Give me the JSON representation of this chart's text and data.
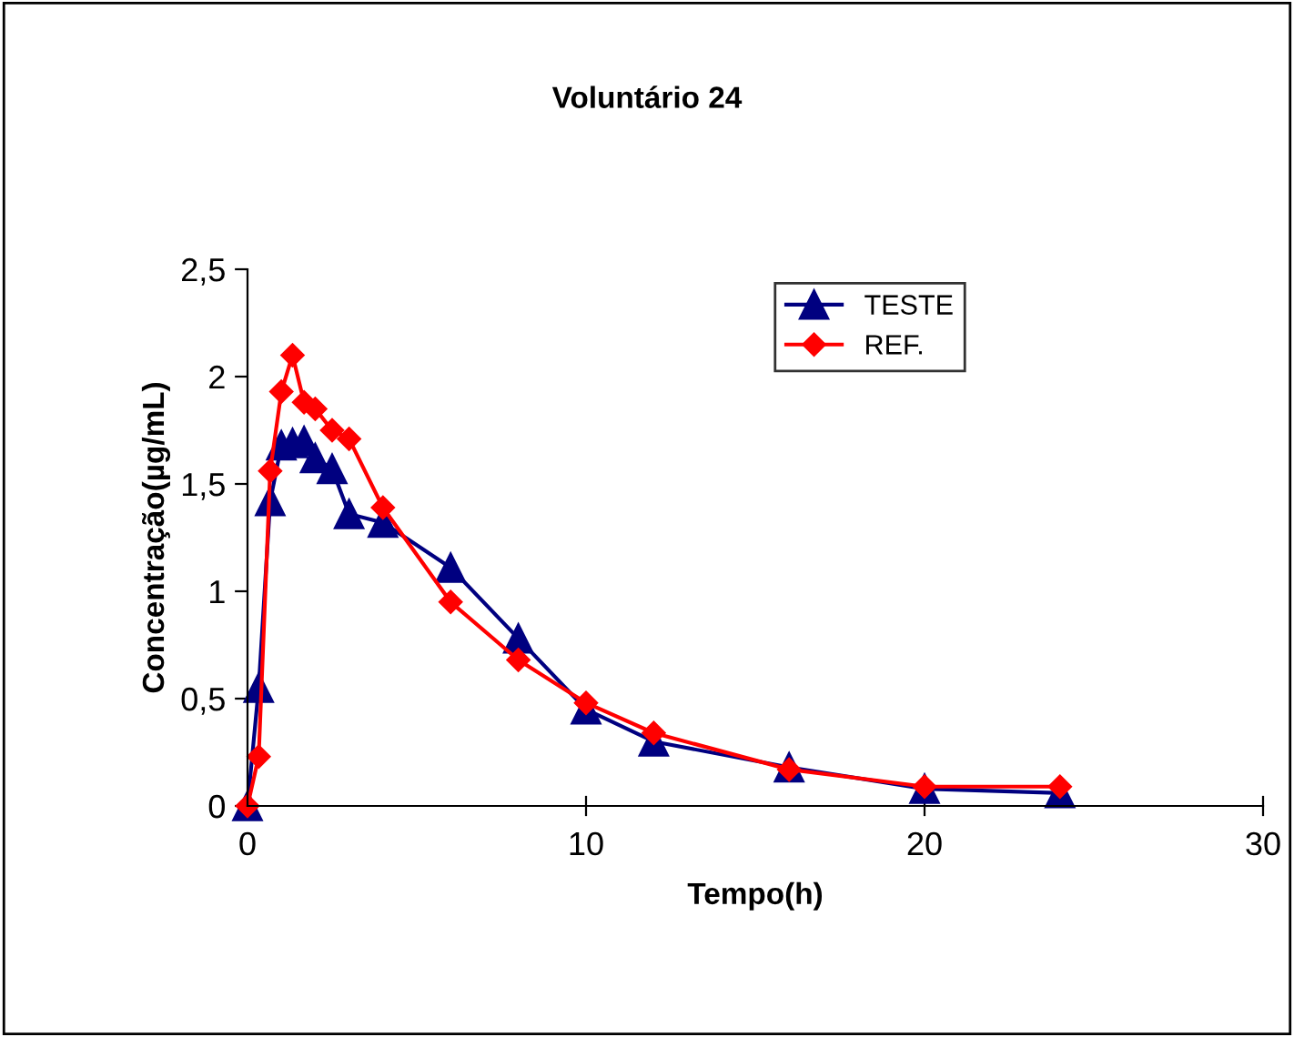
{
  "chart_data": {
    "type": "line",
    "title": "Voluntário 24",
    "xlabel": "Tempo(h)",
    "ylabel": "Concentração(µg/mL)",
    "xlim": [
      0,
      30
    ],
    "xticks": [
      0,
      10,
      20,
      30
    ],
    "ylim": [
      0,
      2.5
    ],
    "yticks": [
      0,
      {
        "value": 0.5,
        "label": "0,5"
      },
      1,
      {
        "value": 1.5,
        "label": "1,5"
      },
      2,
      {
        "value": 2.5,
        "label": "2,5"
      }
    ],
    "x": [
      0,
      0.33,
      0.67,
      1,
      1.33,
      1.67,
      2,
      2.5,
      3,
      4,
      6,
      8,
      10,
      12,
      16,
      20,
      24
    ],
    "series": [
      {
        "name": "TESTE",
        "color": "#000080",
        "marker": "triangle",
        "values": [
          0,
          0.55,
          1.42,
          1.68,
          1.69,
          1.7,
          1.62,
          1.57,
          1.36,
          1.32,
          1.11,
          0.78,
          0.45,
          0.3,
          0.18,
          0.08,
          0.06
        ]
      },
      {
        "name": "REF.",
        "color": "#ff0000",
        "marker": "diamond",
        "values": [
          0,
          0.23,
          1.56,
          1.93,
          2.1,
          1.88,
          1.85,
          1.75,
          1.71,
          1.39,
          0.95,
          0.68,
          0.48,
          0.34,
          0.17,
          0.09,
          0.09
        ]
      }
    ],
    "legend": "top right",
    "grid": false,
    "line_style": "solid"
  }
}
